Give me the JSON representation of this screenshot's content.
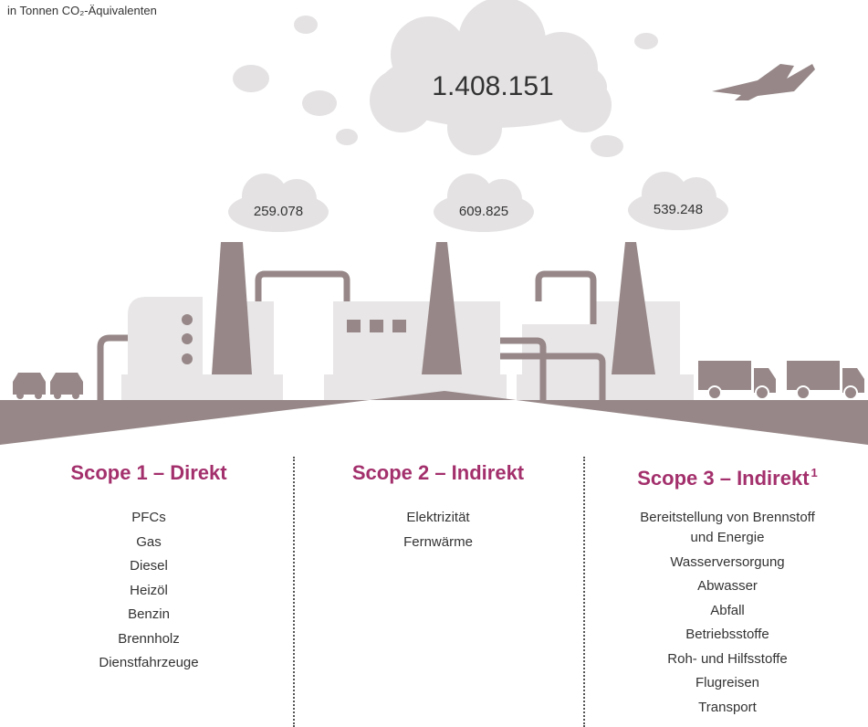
{
  "unit_label": "in Tonnen CO₂-Äquivalenten",
  "total": "1.408.151",
  "scopes": [
    {
      "title": "Scope 1 – Direkt",
      "value": "259.078",
      "items": [
        "PFCs",
        "Gas",
        "Diesel",
        "Heizöl",
        "Benzin",
        "Brennholz",
        "Dienstfahrzeuge"
      ]
    },
    {
      "title": "Scope 2 – Indirekt",
      "value": "609.825",
      "items": [
        "Elektrizität",
        "Fernwärme"
      ]
    },
    {
      "title": "Scope 3 – Indirekt",
      "footnote": "1",
      "value": "539.248",
      "items": [
        "Bereitstellung von Brennstoff und Energie",
        "Wasserversorgung",
        "Abwasser",
        "Abfall",
        "Betriebsstoffe",
        "Roh- und Hilfsstoffe",
        "Flugreisen",
        "Transport"
      ]
    }
  ]
}
